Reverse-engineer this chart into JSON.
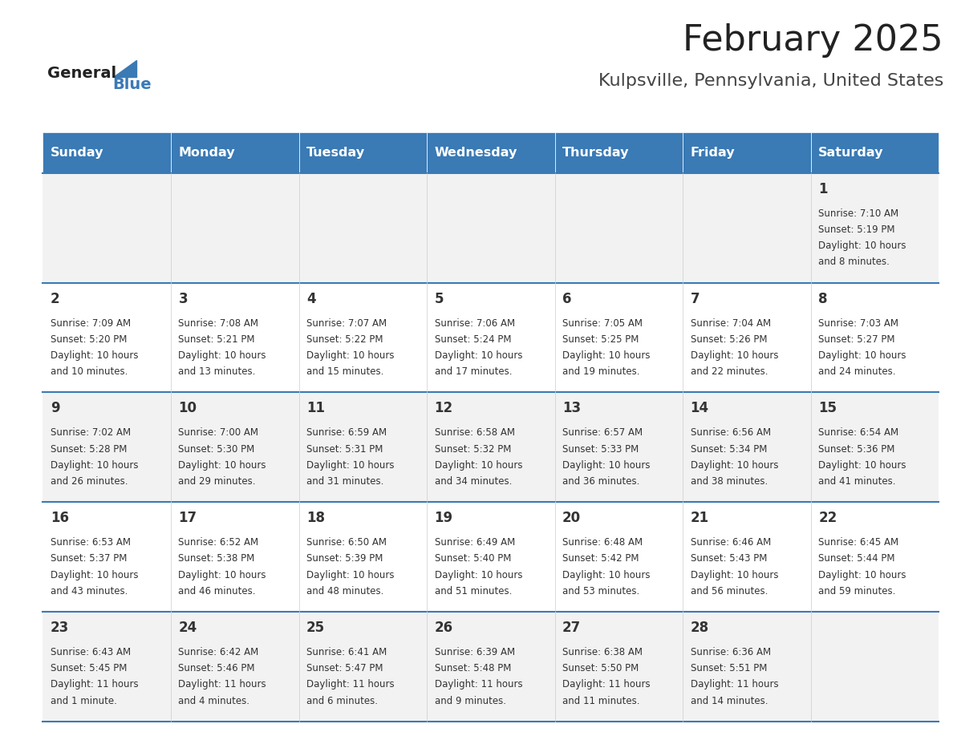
{
  "title": "February 2025",
  "subtitle": "Kulpsville, Pennsylvania, United States",
  "header_bg_color": "#3a7ab5",
  "header_text_color": "#ffffff",
  "cell_bg_even": "#f2f2f2",
  "cell_bg_odd": "#ffffff",
  "day_number_color": "#333333",
  "cell_text_color": "#333333",
  "border_color": "#3a7ab5",
  "days_of_week": [
    "Sunday",
    "Monday",
    "Tuesday",
    "Wednesday",
    "Thursday",
    "Friday",
    "Saturday"
  ],
  "weeks": [
    [
      {
        "day": null,
        "info": null
      },
      {
        "day": null,
        "info": null
      },
      {
        "day": null,
        "info": null
      },
      {
        "day": null,
        "info": null
      },
      {
        "day": null,
        "info": null
      },
      {
        "day": null,
        "info": null
      },
      {
        "day": 1,
        "info": "Sunrise: 7:10 AM\nSunset: 5:19 PM\nDaylight: 10 hours\nand 8 minutes."
      }
    ],
    [
      {
        "day": 2,
        "info": "Sunrise: 7:09 AM\nSunset: 5:20 PM\nDaylight: 10 hours\nand 10 minutes."
      },
      {
        "day": 3,
        "info": "Sunrise: 7:08 AM\nSunset: 5:21 PM\nDaylight: 10 hours\nand 13 minutes."
      },
      {
        "day": 4,
        "info": "Sunrise: 7:07 AM\nSunset: 5:22 PM\nDaylight: 10 hours\nand 15 minutes."
      },
      {
        "day": 5,
        "info": "Sunrise: 7:06 AM\nSunset: 5:24 PM\nDaylight: 10 hours\nand 17 minutes."
      },
      {
        "day": 6,
        "info": "Sunrise: 7:05 AM\nSunset: 5:25 PM\nDaylight: 10 hours\nand 19 minutes."
      },
      {
        "day": 7,
        "info": "Sunrise: 7:04 AM\nSunset: 5:26 PM\nDaylight: 10 hours\nand 22 minutes."
      },
      {
        "day": 8,
        "info": "Sunrise: 7:03 AM\nSunset: 5:27 PM\nDaylight: 10 hours\nand 24 minutes."
      }
    ],
    [
      {
        "day": 9,
        "info": "Sunrise: 7:02 AM\nSunset: 5:28 PM\nDaylight: 10 hours\nand 26 minutes."
      },
      {
        "day": 10,
        "info": "Sunrise: 7:00 AM\nSunset: 5:30 PM\nDaylight: 10 hours\nand 29 minutes."
      },
      {
        "day": 11,
        "info": "Sunrise: 6:59 AM\nSunset: 5:31 PM\nDaylight: 10 hours\nand 31 minutes."
      },
      {
        "day": 12,
        "info": "Sunrise: 6:58 AM\nSunset: 5:32 PM\nDaylight: 10 hours\nand 34 minutes."
      },
      {
        "day": 13,
        "info": "Sunrise: 6:57 AM\nSunset: 5:33 PM\nDaylight: 10 hours\nand 36 minutes."
      },
      {
        "day": 14,
        "info": "Sunrise: 6:56 AM\nSunset: 5:34 PM\nDaylight: 10 hours\nand 38 minutes."
      },
      {
        "day": 15,
        "info": "Sunrise: 6:54 AM\nSunset: 5:36 PM\nDaylight: 10 hours\nand 41 minutes."
      }
    ],
    [
      {
        "day": 16,
        "info": "Sunrise: 6:53 AM\nSunset: 5:37 PM\nDaylight: 10 hours\nand 43 minutes."
      },
      {
        "day": 17,
        "info": "Sunrise: 6:52 AM\nSunset: 5:38 PM\nDaylight: 10 hours\nand 46 minutes."
      },
      {
        "day": 18,
        "info": "Sunrise: 6:50 AM\nSunset: 5:39 PM\nDaylight: 10 hours\nand 48 minutes."
      },
      {
        "day": 19,
        "info": "Sunrise: 6:49 AM\nSunset: 5:40 PM\nDaylight: 10 hours\nand 51 minutes."
      },
      {
        "day": 20,
        "info": "Sunrise: 6:48 AM\nSunset: 5:42 PM\nDaylight: 10 hours\nand 53 minutes."
      },
      {
        "day": 21,
        "info": "Sunrise: 6:46 AM\nSunset: 5:43 PM\nDaylight: 10 hours\nand 56 minutes."
      },
      {
        "day": 22,
        "info": "Sunrise: 6:45 AM\nSunset: 5:44 PM\nDaylight: 10 hours\nand 59 minutes."
      }
    ],
    [
      {
        "day": 23,
        "info": "Sunrise: 6:43 AM\nSunset: 5:45 PM\nDaylight: 11 hours\nand 1 minute."
      },
      {
        "day": 24,
        "info": "Sunrise: 6:42 AM\nSunset: 5:46 PM\nDaylight: 11 hours\nand 4 minutes."
      },
      {
        "day": 25,
        "info": "Sunrise: 6:41 AM\nSunset: 5:47 PM\nDaylight: 11 hours\nand 6 minutes."
      },
      {
        "day": 26,
        "info": "Sunrise: 6:39 AM\nSunset: 5:48 PM\nDaylight: 11 hours\nand 9 minutes."
      },
      {
        "day": 27,
        "info": "Sunrise: 6:38 AM\nSunset: 5:50 PM\nDaylight: 11 hours\nand 11 minutes."
      },
      {
        "day": 28,
        "info": "Sunrise: 6:36 AM\nSunset: 5:51 PM\nDaylight: 11 hours\nand 14 minutes."
      },
      {
        "day": null,
        "info": null
      }
    ]
  ],
  "logo_text_general": "General",
  "logo_text_blue": "Blue",
  "logo_general_color": "#222222",
  "logo_blue_color": "#3a7ab5",
  "logo_triangle_color": "#3a7ab5"
}
